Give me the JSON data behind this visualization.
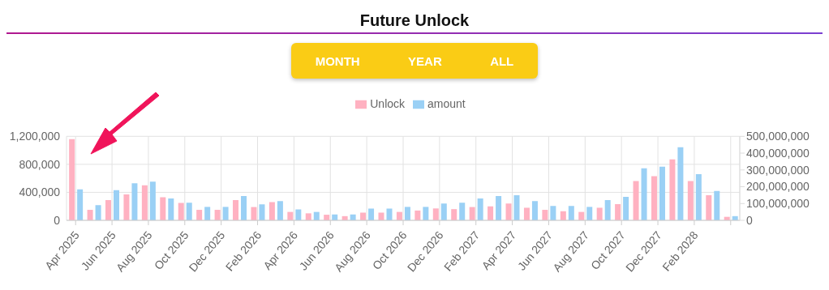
{
  "chart_data": {
    "type": "bar",
    "title": "Future Unlock",
    "annotations": [
      "MONTH",
      "YEAR",
      "ALL"
    ],
    "categories": [
      "Apr 2025",
      null,
      "Jun 2025",
      null,
      "Aug 2025",
      null,
      "Oct 2025",
      null,
      "Dec 2025",
      null,
      "Feb 2026",
      null,
      "Apr 2026",
      null,
      "Jun 2026",
      null,
      "Aug 2026",
      null,
      "Oct 2026",
      null,
      "Dec 2026",
      null,
      "Feb 2027",
      null,
      "Apr 2027",
      null,
      "Jun 2027",
      null,
      "Aug 2027",
      null,
      "Oct 2027",
      null,
      "Dec 2027",
      null,
      "Feb 2028",
      null,
      null
    ],
    "series": [
      {
        "name": "Unlock",
        "color": "#ffb1c1",
        "values": [
          1160000,
          150000,
          290000,
          370000,
          500000,
          330000,
          250000,
          150000,
          150000,
          290000,
          190000,
          260000,
          120000,
          100000,
          80000,
          60000,
          110000,
          110000,
          120000,
          140000,
          170000,
          160000,
          190000,
          200000,
          240000,
          180000,
          150000,
          130000,
          120000,
          180000,
          230000,
          560000,
          630000,
          870000,
          560000,
          360000,
          50000
        ]
      },
      {
        "name": "amount",
        "color": "#9ad0f5",
        "axis": "y2",
        "values": [
          185000000,
          90000000,
          180000000,
          220000000,
          230000000,
          130000000,
          105000000,
          80000000,
          80000000,
          145000000,
          95000000,
          115000000,
          65000000,
          50000000,
          35000000,
          35000000,
          70000000,
          70000000,
          80000000,
          80000000,
          100000000,
          105000000,
          130000000,
          145000000,
          150000000,
          115000000,
          85000000,
          85000000,
          80000000,
          120000000,
          140000000,
          310000000,
          320000000,
          435000000,
          275000000,
          175000000,
          25000000
        ]
      }
    ],
    "ylim": [
      0,
      1200000
    ],
    "yticks": [
      0,
      {
        "value": 400000,
        "label": "400,000"
      },
      {
        "value": 800000,
        "label": "800,000"
      },
      {
        "value": 1200000,
        "label": "1,200,000"
      }
    ],
    "y2lim": [
      0,
      500000000
    ],
    "y2ticks": [
      0,
      {
        "value": 100000000,
        "label": "100,000,000"
      },
      {
        "value": 200000000,
        "label": "200,000,000"
      },
      {
        "value": 300000000,
        "label": "300,000,000"
      },
      {
        "value": 400000000,
        "label": "400,000,000"
      },
      {
        "value": 500000000,
        "label": "500,000,000"
      }
    ],
    "grid": true,
    "legend": "top"
  }
}
